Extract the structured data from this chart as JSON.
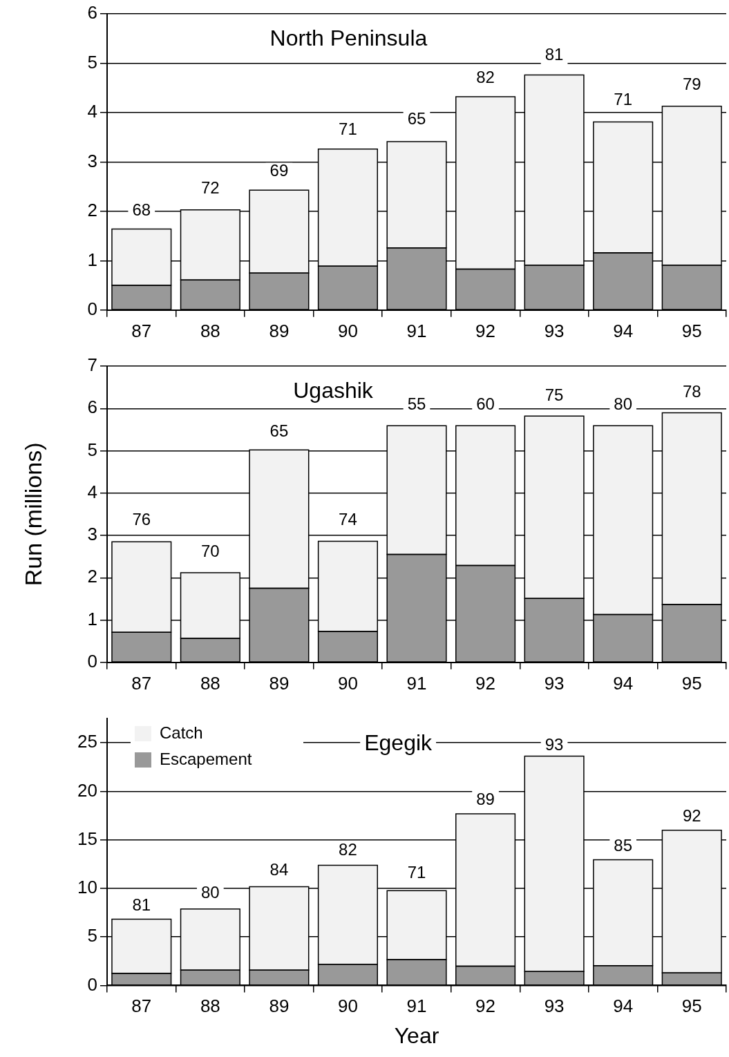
{
  "chart_data": [
    {
      "type": "bar",
      "title": "North Peninsula",
      "categories": [
        "87",
        "88",
        "89",
        "90",
        "91",
        "92",
        "93",
        "94",
        "95"
      ],
      "stacked": true,
      "grid": "y",
      "ylim": [
        0,
        6
      ],
      "yticks": [
        0,
        1,
        2,
        3,
        4,
        5,
        6
      ],
      "series": [
        {
          "color": "#999999",
          "values": [
            0.5,
            0.61,
            0.75,
            0.89,
            1.26,
            0.83,
            0.91,
            1.16,
            0.91
          ]
        },
        {
          "color": "#f2f2f2",
          "values": [
            1.14,
            1.42,
            1.68,
            2.37,
            2.15,
            3.49,
            3.85,
            2.65,
            3.22
          ]
        }
      ],
      "annotations": [
        {
          "text": "68",
          "x": "87",
          "y": 2.0
        },
        {
          "text": "72",
          "x": "88",
          "y": 2.45
        },
        {
          "text": "69",
          "x": "89",
          "y": 2.8
        },
        {
          "text": "71",
          "x": "90",
          "y": 3.65
        },
        {
          "text": "65",
          "x": "91",
          "y": 3.85
        },
        {
          "text": "82",
          "x": "92",
          "y": 4.7
        },
        {
          "text": "81",
          "x": "93",
          "y": 5.15
        },
        {
          "text": "71",
          "x": "94",
          "y": 4.25
        },
        {
          "text": "79",
          "x": "95",
          "y": 4.55
        }
      ]
    },
    {
      "type": "bar",
      "title": "Ugashik",
      "ylabel": "Run (millions)",
      "categories": [
        "87",
        "88",
        "89",
        "90",
        "91",
        "92",
        "93",
        "94",
        "95"
      ],
      "stacked": true,
      "grid": "y",
      "ylim": [
        0,
        7
      ],
      "yticks": [
        0,
        1,
        2,
        3,
        4,
        5,
        6,
        7
      ],
      "series": [
        {
          "color": "#999999",
          "values": [
            0.71,
            0.57,
            1.75,
            0.73,
            2.55,
            2.29,
            1.51,
            1.13,
            1.37
          ]
        },
        {
          "color": "#f2f2f2",
          "values": [
            2.14,
            1.55,
            3.27,
            2.13,
            3.04,
            3.3,
            4.31,
            4.46,
            4.53
          ]
        }
      ],
      "annotations": [
        {
          "text": "76",
          "x": "87",
          "y": 3.35
        },
        {
          "text": "70",
          "x": "88",
          "y": 2.6
        },
        {
          "text": "65",
          "x": "89",
          "y": 5.45
        },
        {
          "text": "74",
          "x": "90",
          "y": 3.35
        },
        {
          "text": "55",
          "x": "91",
          "y": 6.08
        },
        {
          "text": "60",
          "x": "92",
          "y": 6.08
        },
        {
          "text": "75",
          "x": "93",
          "y": 6.3
        },
        {
          "text": "80",
          "x": "94",
          "y": 6.08
        },
        {
          "text": "78",
          "x": "95",
          "y": 6.37
        }
      ]
    },
    {
      "type": "bar",
      "title": "Egegik",
      "xlabel": "Year",
      "categories": [
        "87",
        "88",
        "89",
        "90",
        "91",
        "92",
        "93",
        "94",
        "95"
      ],
      "stacked": true,
      "grid": "y",
      "legend": "top left",
      "ylim": [
        0,
        27.5
      ],
      "yticks": [
        0,
        5,
        10,
        15,
        20,
        25
      ],
      "series": [
        {
          "name": "Escapement",
          "color": "#999999",
          "values": [
            1.23,
            1.57,
            1.57,
            2.18,
            2.66,
            1.98,
            1.43,
            2.04,
            1.29
          ]
        },
        {
          "name": "Catch",
          "color": "#f2f2f2",
          "values": [
            5.6,
            6.3,
            8.6,
            10.2,
            7.1,
            15.7,
            22.2,
            10.9,
            14.7
          ]
        }
      ],
      "annotations": [
        {
          "text": "81",
          "x": "87",
          "y": 8.2
        },
        {
          "text": "80",
          "x": "88",
          "y": 9.5
        },
        {
          "text": "84",
          "x": "89",
          "y": 11.85
        },
        {
          "text": "82",
          "x": "90",
          "y": 13.9
        },
        {
          "text": "71",
          "x": "91",
          "y": 11.5
        },
        {
          "text": "89",
          "x": "92",
          "y": 19.1
        },
        {
          "text": "93",
          "x": "93",
          "y": 24.7
        },
        {
          "text": "85",
          "x": "94",
          "y": 14.3
        },
        {
          "text": "92",
          "x": "95",
          "y": 17.4
        }
      ]
    }
  ]
}
